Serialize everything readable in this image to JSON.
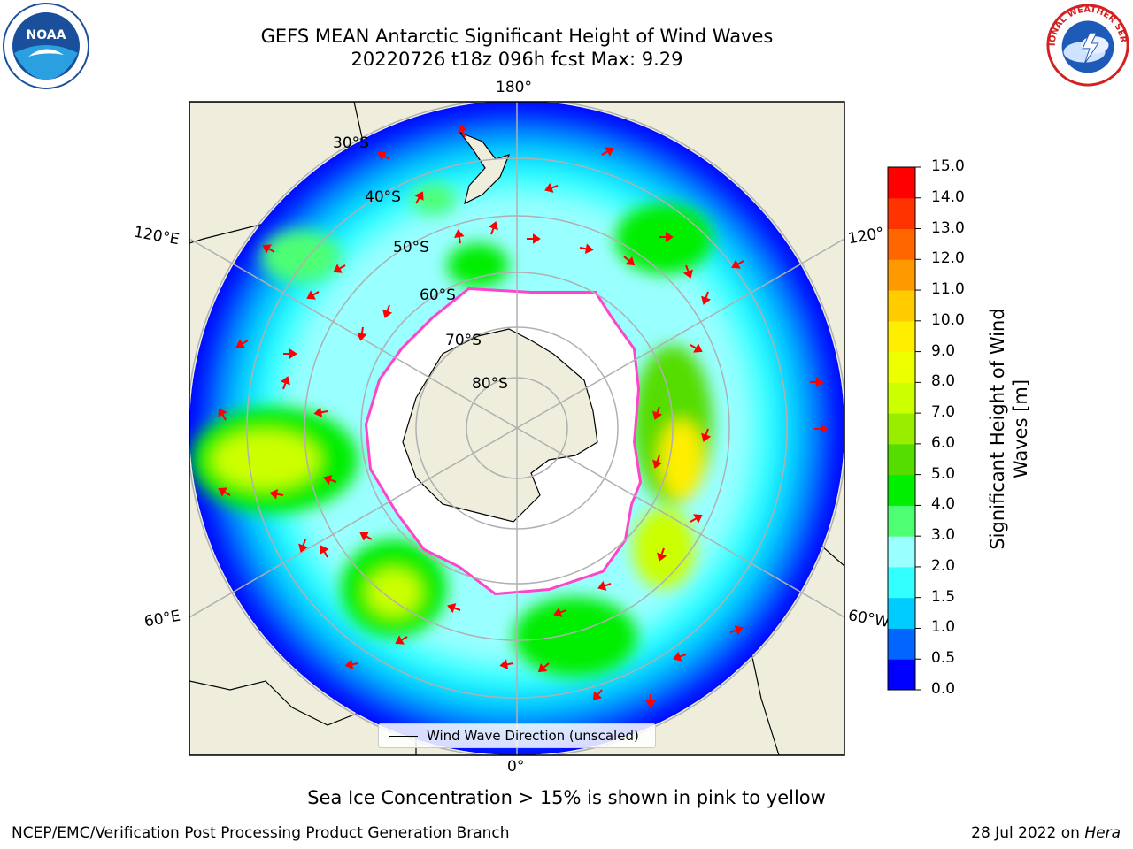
{
  "header": {
    "title_line1": "GEFS MEAN Antarctic Significant Height of Wind Waves",
    "title_line2": "20220726 t18z 096h fcst   Max: 9.29"
  },
  "map": {
    "projection": "south-polar-stereographic",
    "longitude_labels": {
      "top": "180°",
      "bottom": "0°",
      "left_upper": "120°E",
      "left_lower": "60°E",
      "right_upper": "120°",
      "right_lower": "60°W"
    },
    "latitude_labels": [
      "30°S",
      "40°S",
      "50°S",
      "60°S",
      "70°S",
      "80°S"
    ],
    "ocean_fill_levels": [
      0.0,
      0.5,
      1.0,
      1.5,
      2.0,
      3.0,
      4.0,
      5.0,
      6.0,
      7.0,
      8.0,
      9.0,
      10.0,
      11.0,
      12.0,
      13.0,
      14.0,
      15.0
    ],
    "land_color": "#efeedd",
    "arrow_color": "#ff0000",
    "sea_ice_color": "#ff44cc"
  },
  "legend": {
    "label": "Wind Wave Direction (unscaled)"
  },
  "colorbar": {
    "label": "Significant Height of Wind Waves [m]",
    "ticks": [
      "0.0",
      "0.5",
      "1.0",
      "1.5",
      "2.0",
      "3.0",
      "4.0",
      "5.0",
      "6.0",
      "7.0",
      "8.0",
      "9.0",
      "10.0",
      "11.0",
      "12.0",
      "13.0",
      "14.0",
      "15.0"
    ],
    "colors": [
      "#0000ff",
      "#0066ff",
      "#00ccff",
      "#33ffff",
      "#99ffff",
      "#4dff73",
      "#00ee00",
      "#55dd00",
      "#99ee00",
      "#ccff00",
      "#eeff00",
      "#ffee00",
      "#ffcc00",
      "#ff9900",
      "#ff6600",
      "#ff3300",
      "#ff0000"
    ]
  },
  "subtitle": "Sea Ice Concentration > 15% is shown in pink to yellow",
  "footer": {
    "left": "NCEP/EMC/Verification Post Processing Product Generation Branch",
    "right_prefix": "28 Jul 2022 on ",
    "right_machine": "Hera"
  },
  "logos": {
    "noaa_text": "NOAA",
    "nws_text": "NATIONAL WEATHER SERVICE"
  }
}
